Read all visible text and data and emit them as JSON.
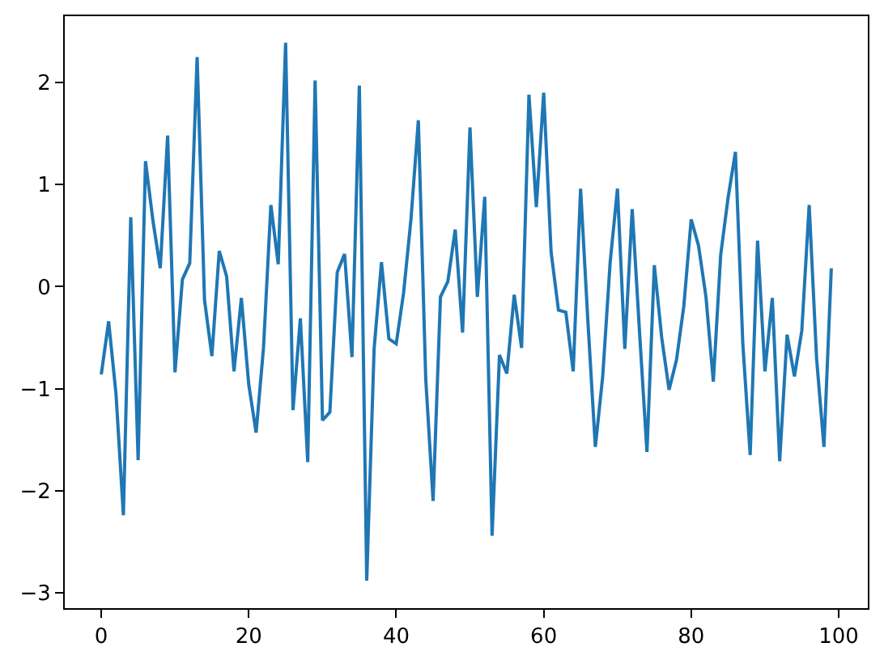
{
  "chart_data": {
    "type": "line",
    "x": [
      0,
      1,
      2,
      3,
      4,
      5,
      6,
      7,
      8,
      9,
      10,
      11,
      12,
      13,
      14,
      15,
      16,
      17,
      18,
      19,
      20,
      21,
      22,
      23,
      24,
      25,
      26,
      27,
      28,
      29,
      30,
      31,
      32,
      33,
      34,
      35,
      36,
      37,
      38,
      39,
      40,
      41,
      42,
      43,
      44,
      45,
      46,
      47,
      48,
      49,
      50,
      51,
      52,
      53,
      54,
      55,
      56,
      57,
      58,
      59,
      60,
      61,
      62,
      63,
      64,
      65,
      66,
      67,
      68,
      69,
      70,
      71,
      72,
      73,
      74,
      75,
      76,
      77,
      78,
      79,
      80,
      81,
      82,
      83,
      84,
      85,
      86,
      87,
      88,
      89,
      90,
      91,
      92,
      93,
      94,
      95,
      96,
      97,
      98,
      99
    ],
    "series": [
      {
        "color": "#1f77b4",
        "values": [
          -0.86,
          -0.34,
          -1.05,
          -2.24,
          0.68,
          -1.7,
          1.23,
          0.65,
          0.18,
          1.48,
          -0.84,
          0.07,
          0.23,
          2.25,
          -0.13,
          -0.68,
          0.35,
          0.1,
          -0.83,
          -0.11,
          -0.96,
          -1.43,
          -0.6,
          0.8,
          0.22,
          2.39,
          -1.21,
          -0.31,
          -1.72,
          2.02,
          -1.31,
          -1.23,
          0.14,
          0.32,
          -0.69,
          1.97,
          -2.88,
          -0.61,
          0.24,
          -0.51,
          -0.56,
          -0.06,
          0.66,
          1.63,
          -0.9,
          -2.1,
          -0.1,
          0.05,
          0.56,
          -0.45,
          1.56,
          -0.1,
          0.88,
          -2.44,
          -0.67,
          -0.85,
          -0.08,
          -0.6,
          1.88,
          0.78,
          1.9,
          0.34,
          -0.23,
          -0.25,
          -0.83,
          0.96,
          -0.35,
          -1.57,
          -0.88,
          0.23,
          0.96,
          -0.61,
          0.76,
          -0.45,
          -1.62,
          0.21,
          -0.5,
          -1.01,
          -0.72,
          -0.19,
          0.66,
          0.4,
          -0.1,
          -0.93,
          0.31,
          0.87,
          1.32,
          -0.56,
          -1.65,
          0.45,
          -0.83,
          -0.11,
          -1.71,
          -0.47,
          -0.88,
          -0.43,
          0.8,
          -0.7,
          -1.57,
          0.18
        ]
      }
    ],
    "xlim": [
      -4.95,
      103.95
    ],
    "ylim": [
      -3.15,
      2.65
    ],
    "xticks": [
      0,
      20,
      40,
      60,
      80,
      100
    ],
    "yticks": [
      {
        "value": -3,
        "label": "−3"
      },
      {
        "value": -2,
        "label": "−2"
      },
      {
        "value": -1,
        "label": "−1"
      },
      0,
      1,
      2
    ],
    "grid": false,
    "marker": "none",
    "line_style": "solid"
  }
}
